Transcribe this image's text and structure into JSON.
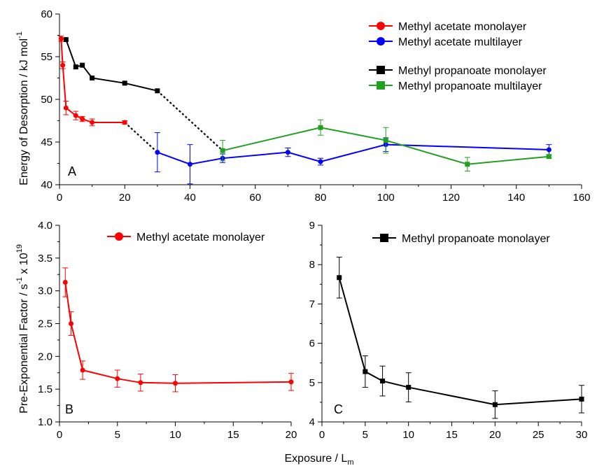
{
  "chart_data": [
    {
      "panel_label": "A",
      "type": "line",
      "ylabel": "Energy of Desorption / kJ mol",
      "ylabel_sup": "-1",
      "xlim": [
        0,
        160
      ],
      "ylim": [
        40,
        60
      ],
      "xticks": [
        0,
        20,
        40,
        60,
        80,
        100,
        120,
        140,
        160
      ],
      "yticks": [
        40,
        45,
        50,
        55,
        60
      ],
      "legend_position": "top-right",
      "series": [
        {
          "name": "Methyl acetate monolayer",
          "color": "#ff0000",
          "marker": "circle",
          "x": [
            0.5,
            1,
            2,
            5,
            7,
            10,
            20
          ],
          "y": [
            57.1,
            54.0,
            49.0,
            48.1,
            47.7,
            47.3,
            47.3
          ],
          "err": [
            0.3,
            0.4,
            0.8,
            0.5,
            0.3,
            0.4,
            0.2
          ]
        },
        {
          "name": "Methyl acetate multilayer",
          "color": "#0000ff",
          "marker": "circle",
          "x": [
            30,
            40,
            50,
            70,
            80,
            100,
            150
          ],
          "y": [
            43.8,
            42.4,
            43.1,
            43.8,
            42.7,
            44.7,
            44.1
          ],
          "err": [
            2.3,
            2.3,
            0.5,
            0.5,
            0.4,
            0.8,
            0.6
          ]
        },
        {
          "name": "Methyl propanoate monolayer",
          "color": "#000000",
          "marker": "square",
          "x": [
            2,
            5,
            7,
            10,
            20,
            30
          ],
          "y": [
            57.0,
            53.8,
            54.0,
            52.5,
            51.9,
            51.0
          ],
          "err": [
            0,
            0,
            0,
            0,
            0,
            0
          ]
        },
        {
          "name": "Methyl propanoate multilayer",
          "color": "#22a022",
          "marker": "square",
          "x": [
            50,
            80,
            100,
            125,
            150
          ],
          "y": [
            44.0,
            46.7,
            45.2,
            42.4,
            43.3
          ],
          "err": [
            1.2,
            0.9,
            1.5,
            0.8,
            0.2
          ]
        }
      ],
      "connectors": [
        {
          "x": [
            20,
            30
          ],
          "y": [
            47.3,
            43.8
          ]
        },
        {
          "x": [
            30,
            50
          ],
          "y": [
            51.0,
            44.0
          ]
        }
      ]
    },
    {
      "panel_label": "B",
      "type": "line",
      "ylabel": "Pre-Exponential Factor / s",
      "ylabel_sup1": "-1",
      "ylabel_mid": " x 10",
      "ylabel_sup2": "19",
      "xlim": [
        0,
        20
      ],
      "ylim": [
        1.0,
        4.0
      ],
      "xticks": [
        0,
        5,
        10,
        15,
        20
      ],
      "yticks": [
        1.0,
        1.5,
        2.0,
        2.5,
        3.0,
        3.5,
        4.0
      ],
      "ytick_labels": [
        "1.0",
        "1.5",
        "2.0",
        "2.5",
        "3.0",
        "3.5",
        "4.0"
      ],
      "legend_position": "top-right",
      "series": [
        {
          "name": "Methyl acetate monolayer",
          "color": "#ff0000",
          "marker": "circle",
          "x": [
            0.5,
            1,
            2,
            5,
            7,
            10,
            20
          ],
          "y": [
            3.13,
            2.5,
            1.79,
            1.66,
            1.6,
            1.59,
            1.61
          ],
          "err": [
            0.22,
            0.18,
            0.14,
            0.13,
            0.13,
            0.13,
            0.13
          ]
        }
      ]
    },
    {
      "panel_label": "C",
      "type": "line",
      "xlim": [
        0,
        30
      ],
      "ylim": [
        4,
        9
      ],
      "xticks": [
        0,
        5,
        10,
        15,
        20,
        25,
        30
      ],
      "yticks": [
        4,
        5,
        6,
        7,
        8,
        9
      ],
      "legend_position": "top-right",
      "series": [
        {
          "name": "Methyl propanoate monolayer",
          "color": "#000000",
          "marker": "square",
          "x": [
            2,
            5,
            7,
            10,
            20,
            30
          ],
          "y": [
            7.67,
            5.28,
            5.04,
            4.88,
            4.44,
            4.58
          ],
          "err": [
            0.52,
            0.4,
            0.38,
            0.37,
            0.35,
            0.35
          ]
        }
      ]
    }
  ],
  "shared_xlabel": "Exposure / L",
  "shared_xlabel_sub": "m"
}
